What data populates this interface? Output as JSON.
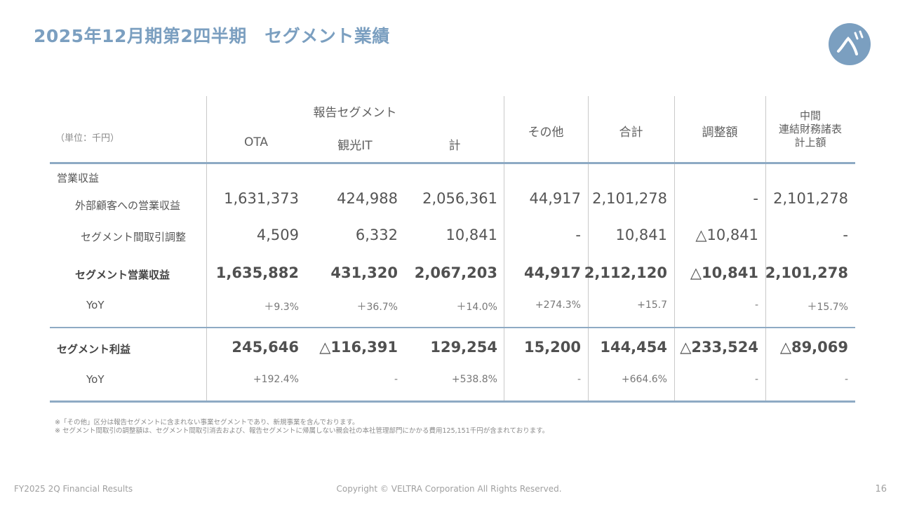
{
  "title": "2025年12月期第2四半期　セグメント業績",
  "logo_label": "ベ",
  "table": {
    "unit": "（単位：千円）",
    "group_header": "報告セグメント",
    "columns": {
      "ota": "OTA",
      "kankoit": "観光IT",
      "total_seg": "計",
      "other": "その他",
      "sum": "合計",
      "adjust": "調整額",
      "consol_l1": "中間",
      "consol_l2": "連結財務諸表",
      "consol_l3": "計上額"
    },
    "section_label": "営業収益",
    "rows": {
      "external": {
        "label": "外部顧客への営業収益",
        "values": [
          "1,631,373",
          "424,988",
          "2,056,361",
          "44,917",
          "2,101,278",
          "-",
          "2,101,278"
        ]
      },
      "intersegment": {
        "label": "セグメント間取引調整",
        "values": [
          "4,509",
          "6,332",
          "10,841",
          "-",
          "10,841",
          "△10,841",
          "-"
        ]
      },
      "seg_revenue": {
        "label": "セグメント営業収益",
        "values": [
          "1,635,882",
          "431,320",
          "2,067,203",
          "44,917",
          "2,112,120",
          "△10,841",
          "2,101,278"
        ]
      },
      "yoy1": {
        "label": "YoY",
        "values": [
          "＋9.3%",
          "＋36.7%",
          "＋14.0%",
          "+274.3%",
          "+15.7",
          "-",
          "＋15.7%"
        ]
      },
      "seg_profit": {
        "label": "セグメント利益",
        "values": [
          "245,646",
          "△116,391",
          "129,254",
          "15,200",
          "144,454",
          "△233,524",
          "△89,069"
        ]
      },
      "yoy2": {
        "label": "YoY",
        "values": [
          "+192.4%",
          "-",
          "+538.8%",
          "-",
          "+664.6%",
          "-",
          "-"
        ]
      }
    }
  },
  "notes": [
    "※「その他」区分は報告セグメントに含まれない事業セグメントであり、新規事業を含んでおります。",
    "※ セグメント間取引の調整額は、セグメント間取引消去および、報告セグメントに帰属しない親会社の本社管理部門にかかる費用125,151千円が含まれております。"
  ],
  "footer": {
    "left": "FY2025 2Q Financial Results",
    "center": "Copyright © VELTRA Corporation All Rights Reserved.",
    "page": "16"
  }
}
